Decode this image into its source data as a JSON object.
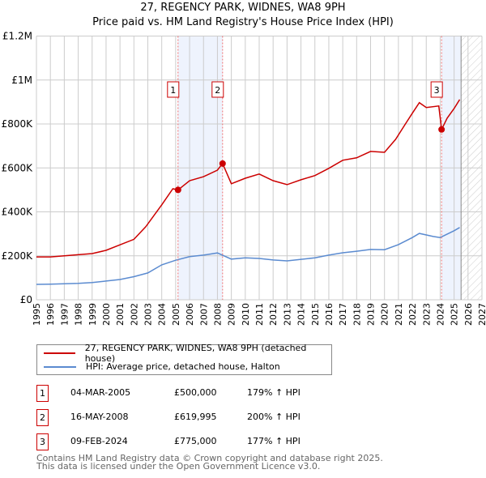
{
  "title": "27, REGENCY PARK, WIDNES, WA8 9PH",
  "subtitle": "Price paid vs. HM Land Registry's House Price Index (HPI)",
  "colors": {
    "property": "#cc0000",
    "hpi": "#5b8bd0",
    "shade": "#eef3fd"
  },
  "chart_data": {
    "type": "line",
    "xlim": [
      1995,
      2027
    ],
    "ylim": [
      0,
      1200000
    ],
    "y_ticks": [
      {
        "v": 0,
        "label": "£0"
      },
      {
        "v": 200000,
        "label": "£200K"
      },
      {
        "v": 400000,
        "label": "£400K"
      },
      {
        "v": 600000,
        "label": "£600K"
      },
      {
        "v": 800000,
        "label": "£800K"
      },
      {
        "v": 1000000,
        "label": "£1M"
      },
      {
        "v": 1200000,
        "label": "£1.2M"
      }
    ],
    "x_ticks": [
      "1995",
      "1996",
      "1997",
      "1998",
      "1999",
      "2000",
      "2001",
      "2002",
      "2003",
      "2004",
      "2005",
      "2006",
      "2007",
      "2008",
      "2009",
      "2010",
      "2011",
      "2012",
      "2013",
      "2014",
      "2015",
      "2016",
      "2017",
      "2018",
      "2019",
      "2020",
      "2021",
      "2022",
      "2023",
      "2024",
      "2025",
      "2026",
      "2027"
    ],
    "forecast_from": 2025.5,
    "shaded": [
      [
        2005.17,
        2008.37
      ],
      [
        2024.1,
        2025.5
      ]
    ],
    "series": [
      {
        "name": "27, REGENCY PARK, WIDNES, WA8 9PH (detached house)",
        "color": "#cc0000",
        "x": [
          1995,
          1996,
          1997,
          1998,
          1999,
          2000,
          2001,
          2002,
          2002.85,
          2004,
          2004.8,
          2005.17,
          2006,
          2007,
          2008,
          2008.37,
          2009,
          2010,
          2011,
          2012,
          2013,
          2014,
          2015,
          2016,
          2017,
          2018,
          2019,
          2020,
          2020.8,
          2021.5,
          2022,
          2022.5,
          2023,
          2023.9,
          2024.1,
          2024.5,
          2025,
          2025.4
        ],
        "y": [
          195000,
          195000,
          200000,
          205000,
          210000,
          225000,
          250000,
          275000,
          332000,
          432000,
          505000,
          500000,
          542000,
          560000,
          590000,
          619995,
          528000,
          553000,
          572000,
          542000,
          524000,
          546000,
          565000,
          598000,
          635000,
          646000,
          675000,
          671000,
          730000,
          800000,
          849000,
          897000,
          875000,
          882000,
          775000,
          826000,
          870000,
          911000
        ]
      },
      {
        "name": "HPI: Average price, detached house, Halton",
        "color": "#5b8bd0",
        "x": [
          1995,
          1996,
          1997,
          1998,
          1999,
          2000,
          2001,
          2002,
          2003,
          2004,
          2005,
          2006,
          2007,
          2008,
          2009,
          2010,
          2011,
          2012,
          2013,
          2014,
          2015,
          2016,
          2017,
          2018,
          2019,
          2020,
          2021,
          2022,
          2022.5,
          2023.5,
          2024,
          2025,
          2025.4
        ],
        "y": [
          70000,
          71000,
          73000,
          75000,
          78000,
          85000,
          92000,
          105000,
          122000,
          159000,
          180000,
          196000,
          203000,
          213000,
          185000,
          191000,
          188000,
          181000,
          177000,
          184000,
          191000,
          203000,
          214000,
          221000,
          229000,
          228000,
          251000,
          283000,
          302000,
          288000,
          283000,
          314000,
          329000
        ]
      }
    ],
    "annotations": [
      {
        "label": "1",
        "x": 2005.17,
        "y": 500000
      },
      {
        "label": "2",
        "x": 2008.37,
        "y": 619995
      },
      {
        "label": "3",
        "x": 2024.1,
        "y": 775000
      }
    ]
  },
  "legend": [
    {
      "label": "27, REGENCY PARK, WIDNES, WA8 9PH (detached house)"
    },
    {
      "label": "HPI: Average price, detached house, Halton"
    }
  ],
  "sales": [
    {
      "num": "1",
      "date": "04-MAR-2005",
      "price": "£500,000",
      "hpi": "179% ↑ HPI"
    },
    {
      "num": "2",
      "date": "16-MAY-2008",
      "price": "£619,995",
      "hpi": "200% ↑ HPI"
    },
    {
      "num": "3",
      "date": "09-FEB-2024",
      "price": "£775,000",
      "hpi": "177% ↑ HPI"
    }
  ],
  "footer": [
    "Contains HM Land Registry data © Crown copyright and database right 2025.",
    "This data is licensed under the Open Government Licence v3.0."
  ]
}
